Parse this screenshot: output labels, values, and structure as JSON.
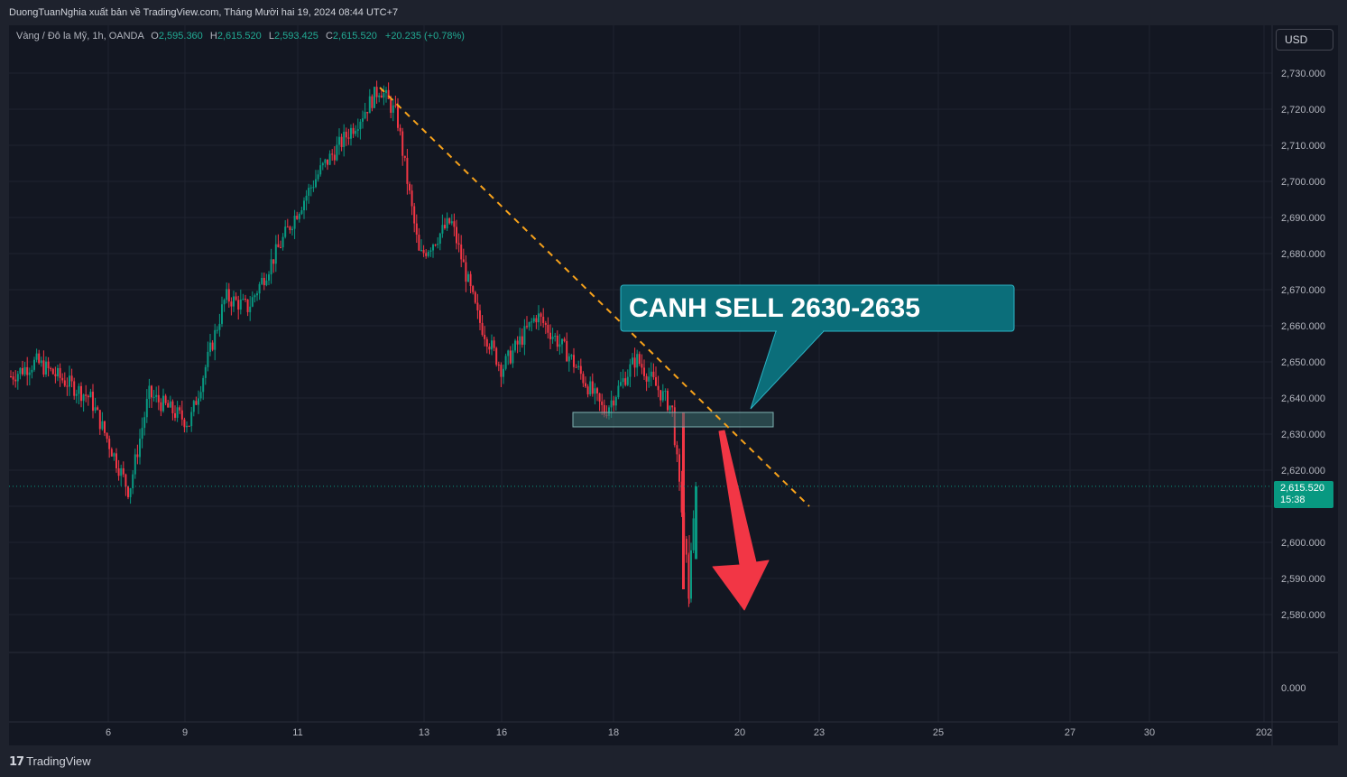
{
  "header": {
    "published_by": "DuongTuanNghia xuất bản về TradingView.com, Tháng Mười hai 19, 2024 08:44 UTC+7"
  },
  "legend": {
    "symbol": "Vàng / Đô la Mỹ, 1h, OANDA",
    "open_label": "O",
    "open_value": "2,595.360",
    "high_label": "H",
    "high_value": "2,615.520",
    "low_label": "L",
    "low_value": "2,593.425",
    "close_label": "C",
    "close_value": "2,615.520",
    "change": "+20.235 (+0.78%)"
  },
  "currency_button": "USD",
  "last_price": {
    "value": "2,615.520",
    "countdown": "15:38"
  },
  "footer": {
    "brand": "TradingView"
  },
  "colors": {
    "background": "#131722",
    "grid": "#1f2330",
    "up_candle": "#089981",
    "down_candle": "#f23645",
    "trendline": "#f7a21b",
    "callout_fill": "#0b6e7a",
    "callout_border": "#2bb3c4",
    "zone_fill": "#3d6e6e",
    "arrow": "#f23645"
  },
  "chart_data": {
    "type": "candlestick",
    "instrument": "Vàng / Đô la Mỹ",
    "timeframe": "1h",
    "broker": "OANDA",
    "y_axis": {
      "ticks": [
        "2,730.000",
        "2,720.000",
        "2,710.000",
        "2,700.000",
        "2,690.000",
        "2,680.000",
        "2,670.000",
        "2,660.000",
        "2,650.000",
        "2,640.000",
        "2,630.000",
        "2,620.000",
        "2,600.000",
        "2,590.000",
        "2,580.000"
      ],
      "tick_values": [
        2730,
        2720,
        2710,
        2700,
        2690,
        2680,
        2670,
        2660,
        2650,
        2640,
        2630,
        2620,
        2600,
        2590,
        2580
      ],
      "range": [
        2571,
        2735
      ]
    },
    "indicator_pane_tick": "0.000",
    "x_axis": {
      "labels": [
        "6",
        "9",
        "11",
        "13",
        "16",
        "18",
        "20",
        "23",
        "25",
        "27",
        "30",
        "202"
      ]
    },
    "price_path": [
      {
        "x": "start",
        "y": 2646
      },
      {
        "x": "~3",
        "y": 2650
      },
      {
        "x": "~5",
        "y": 2640
      },
      {
        "x": "6",
        "y": 2614
      },
      {
        "x": "~7",
        "y": 2641
      },
      {
        "x": "9",
        "y": 2633
      },
      {
        "x": "~9.5",
        "y": 2668
      },
      {
        "x": "~10",
        "y": 2665
      },
      {
        "x": "11",
        "y": 2692
      },
      {
        "x": "~11.5",
        "y": 2703
      },
      {
        "x": "~12",
        "y": 2718
      },
      {
        "x": "12 peak",
        "y": 2726
      },
      {
        "x": "13",
        "y": 2718
      },
      {
        "x": "~13.2",
        "y": 2679
      },
      {
        "x": "~13.8",
        "y": 2689
      },
      {
        "x": "~14.5",
        "y": 2662
      },
      {
        "x": "16",
        "y": 2648
      },
      {
        "x": "~16.5",
        "y": 2663
      },
      {
        "x": "~17",
        "y": 2652
      },
      {
        "x": "18",
        "y": 2636
      },
      {
        "x": "~18.5",
        "y": 2651
      },
      {
        "x": "~19",
        "y": 2637
      },
      {
        "x": "~19.2",
        "y": 2587
      },
      {
        "x": "last",
        "y": 2615.52
      }
    ],
    "last_price": 2615.52,
    "annotations": {
      "callout_text": "CANH SELL 2630-2635",
      "sell_zone": [
        2632,
        2636
      ],
      "trendline": {
        "from": {
          "x": "12 peak",
          "y": 2726
        },
        "to": {
          "x": "~22.8",
          "y": 2610
        },
        "style": "dashed"
      },
      "arrow": "down"
    }
  }
}
